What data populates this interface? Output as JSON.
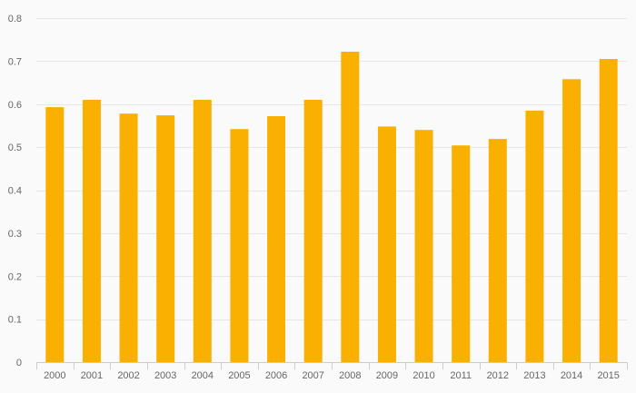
{
  "chart_data": {
    "type": "bar",
    "categories": [
      "2000",
      "2001",
      "2002",
      "2003",
      "2004",
      "2005",
      "2006",
      "2007",
      "2008",
      "2009",
      "2010",
      "2011",
      "2012",
      "2013",
      "2014",
      "2015"
    ],
    "values": [
      0.593,
      0.61,
      0.578,
      0.574,
      0.61,
      0.542,
      0.572,
      0.61,
      0.722,
      0.548,
      0.54,
      0.504,
      0.519,
      0.585,
      0.658,
      0.705
    ],
    "ylim": [
      0,
      0.8
    ],
    "yticks": [
      "0",
      "0.1",
      "0.2",
      "0.3",
      "0.4",
      "0.5",
      "0.6",
      "0.7",
      "0.8"
    ],
    "grid": true,
    "legend": "none",
    "colors": {
      "bar": "#f9b000",
      "grid": "#e6e6e6",
      "axis": "#cccccc",
      "text": "#666666",
      "background": "#fafafa"
    }
  }
}
